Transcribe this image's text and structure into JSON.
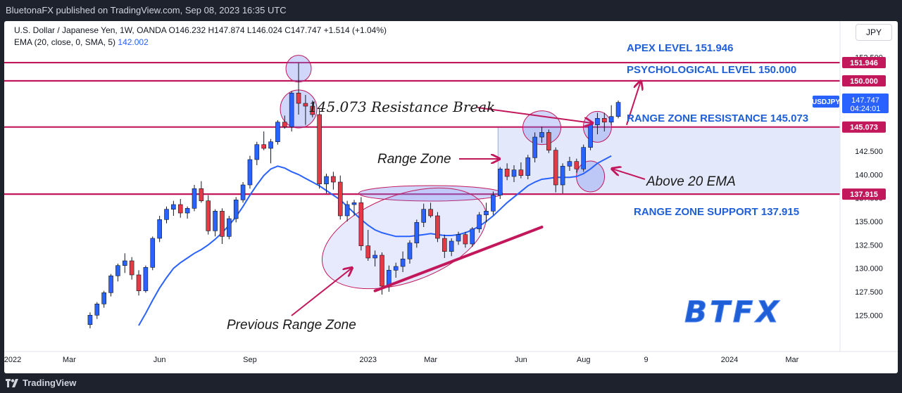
{
  "header": {
    "publisher": "BluetonaFX published on TradingView.com, Sep 08, 2023 16:35 UTC"
  },
  "legend": {
    "symbol_line": "U.S. Dollar / Japanese Yen, 1W, OANDA  O146.232  H147.874  L146.024  C147.747  +1.514 (+1.04%)",
    "ema_label": "EMA (20, close, 0, SMA, 5)",
    "ema_value": "142.002"
  },
  "currency_button": "JPY",
  "footer": {
    "brand": "TradingView"
  },
  "colors": {
    "up": "#2962ff",
    "down": "#e53946",
    "ema": "#2962ff",
    "level": "#c2185b",
    "annotation_blue": "#1e5fd8",
    "zone_fill": "#e3e9fb"
  },
  "chart_data": {
    "type": "candlestick",
    "symbol": "USDJPY",
    "interval": "1W",
    "ylim": [
      123.75,
      153.0
    ],
    "y_ticks": [
      {
        "value": 125.0,
        "label": "125.000"
      },
      {
        "value": 127.5,
        "label": "127.500"
      },
      {
        "value": 130.0,
        "label": "130.000"
      },
      {
        "value": 132.5,
        "label": "132.500"
      },
      {
        "value": 135.0,
        "label": "135.000"
      },
      {
        "value": 137.5,
        "label": "137.500"
      },
      {
        "value": 140.0,
        "label": "140.000"
      },
      {
        "value": 142.5,
        "label": "142.500"
      },
      {
        "value": 152.5,
        "label": "152.500"
      }
    ],
    "x_ticks": [
      {
        "index": 0,
        "label": "2022"
      },
      {
        "index": 9,
        "label": "Mar"
      },
      {
        "index": 22,
        "label": "Jun"
      },
      {
        "index": 35,
        "label": "Sep"
      },
      {
        "index": 52,
        "label": "2023"
      },
      {
        "index": 61,
        "label": "Mar"
      },
      {
        "index": 74,
        "label": "Jun"
      },
      {
        "index": 83,
        "label": "Aug"
      },
      {
        "index": 92,
        "label": "9"
      },
      {
        "index": 104,
        "label": "2024"
      },
      {
        "index": 113,
        "label": "Mar"
      }
    ],
    "price_tags": [
      {
        "value": 151.946,
        "label": "151.946",
        "style": "level"
      },
      {
        "value": 150.0,
        "label": "150.000",
        "style": "level"
      },
      {
        "value": 147.747,
        "label": "147.747",
        "sub": "04:24:01",
        "style": "current",
        "symbol_tag": "USDJPY"
      },
      {
        "value": 145.073,
        "label": "145.073",
        "style": "level"
      },
      {
        "value": 137.915,
        "label": "137.915",
        "style": "level"
      }
    ],
    "levels": [
      {
        "value": 151.946,
        "name": "APEX LEVEL 151.946"
      },
      {
        "value": 150.0,
        "name": "PSYCHOLOGICAL LEVEL 150.000"
      },
      {
        "value": 145.073,
        "name": "RANGE ZONE RESISTANCE 145.073"
      },
      {
        "value": 137.915,
        "name": "RANGE ZONE SUPPORT 137.915"
      }
    ],
    "candles": [
      [
        12,
        124.0,
        125.3,
        123.6,
        125.0
      ],
      [
        13,
        125.0,
        126.4,
        124.6,
        126.2
      ],
      [
        14,
        126.2,
        127.6,
        125.8,
        127.4
      ],
      [
        15,
        127.4,
        129.4,
        127.0,
        129.2
      ],
      [
        16,
        129.2,
        130.5,
        128.6,
        130.3
      ],
      [
        17,
        130.3,
        131.6,
        129.5,
        130.8
      ],
      [
        18,
        130.8,
        131.2,
        128.8,
        129.3
      ],
      [
        19,
        129.3,
        129.8,
        127.1,
        127.6
      ],
      [
        20,
        127.6,
        130.3,
        127.4,
        130.1
      ],
      [
        21,
        130.1,
        133.4,
        129.8,
        133.2
      ],
      [
        22,
        133.2,
        135.6,
        132.8,
        135.2
      ],
      [
        23,
        135.2,
        136.6,
        134.8,
        136.3
      ],
      [
        24,
        136.3,
        137.2,
        135.6,
        136.8
      ],
      [
        25,
        136.8,
        137.4,
        135.4,
        135.9
      ],
      [
        26,
        135.9,
        136.6,
        135.3,
        136.4
      ],
      [
        27,
        136.4,
        138.9,
        136.1,
        138.5
      ],
      [
        28,
        138.5,
        139.3,
        137.0,
        137.2
      ],
      [
        29,
        137.2,
        137.8,
        133.6,
        134.0
      ],
      [
        30,
        134.0,
        136.3,
        133.4,
        136.1
      ],
      [
        31,
        136.1,
        136.4,
        132.6,
        133.4
      ],
      [
        32,
        133.4,
        135.6,
        133.1,
        135.3
      ],
      [
        33,
        135.3,
        137.6,
        134.9,
        137.3
      ],
      [
        34,
        137.3,
        139.2,
        137.0,
        138.9
      ],
      [
        35,
        138.9,
        142.0,
        138.5,
        141.6
      ],
      [
        36,
        141.6,
        143.5,
        141.0,
        143.2
      ],
      [
        37,
        143.2,
        144.6,
        142.6,
        142.8
      ],
      [
        38,
        142.8,
        143.8,
        141.2,
        143.5
      ],
      [
        39,
        143.5,
        145.8,
        143.2,
        145.6
      ],
      [
        40,
        145.6,
        146.3,
        144.9,
        145.1
      ],
      [
        41,
        145.1,
        148.9,
        144.6,
        148.7
      ],
      [
        42,
        148.7,
        151.9,
        146.4,
        147.6
      ],
      [
        43,
        147.6,
        148.5,
        145.3,
        147.3
      ],
      [
        44,
        147.3,
        147.9,
        146.1,
        146.4
      ],
      [
        45,
        146.4,
        147.1,
        138.5,
        139.0
      ],
      [
        46,
        139.0,
        140.1,
        138.0,
        139.8
      ],
      [
        47,
        139.8,
        140.3,
        138.4,
        139.2
      ],
      [
        48,
        139.2,
        139.9,
        135.2,
        135.6
      ],
      [
        49,
        135.6,
        137.2,
        135.0,
        136.8
      ],
      [
        50,
        136.8,
        137.3,
        135.6,
        137.0
      ],
      [
        51,
        137.0,
        137.6,
        131.9,
        132.4
      ],
      [
        52,
        132.4,
        134.1,
        130.8,
        131.1
      ],
      [
        53,
        131.1,
        131.9,
        130.2,
        131.4
      ],
      [
        54,
        131.4,
        131.7,
        127.2,
        128.1
      ],
      [
        55,
        128.1,
        130.3,
        127.5,
        129.8
      ],
      [
        56,
        129.8,
        130.6,
        129.0,
        130.2
      ],
      [
        57,
        130.2,
        131.8,
        129.6,
        131.0
      ],
      [
        58,
        131.0,
        133.0,
        130.5,
        132.7
      ],
      [
        59,
        132.7,
        135.2,
        132.2,
        134.9
      ],
      [
        60,
        134.9,
        136.9,
        134.4,
        136.3
      ],
      [
        61,
        136.3,
        137.0,
        135.4,
        135.6
      ],
      [
        62,
        135.6,
        136.0,
        132.8,
        133.2
      ],
      [
        63,
        133.2,
        133.6,
        131.1,
        131.8
      ],
      [
        64,
        131.8,
        133.2,
        131.3,
        132.9
      ],
      [
        65,
        132.9,
        133.9,
        132.5,
        133.6
      ],
      [
        66,
        133.6,
        133.9,
        132.2,
        132.6
      ],
      [
        67,
        132.6,
        134.4,
        132.3,
        134.2
      ],
      [
        68,
        134.2,
        136.0,
        133.8,
        135.7
      ],
      [
        69,
        135.7,
        137.0,
        134.9,
        136.1
      ],
      [
        70,
        136.1,
        138.2,
        135.7,
        137.8
      ],
      [
        71,
        137.8,
        140.8,
        137.4,
        140.6
      ],
      [
        72,
        140.6,
        141.2,
        139.4,
        139.8
      ],
      [
        73,
        139.8,
        141.0,
        139.2,
        140.5
      ],
      [
        74,
        140.5,
        141.3,
        139.6,
        139.9
      ],
      [
        75,
        139.9,
        142.1,
        139.5,
        141.8
      ],
      [
        76,
        141.8,
        144.5,
        141.3,
        144.0
      ],
      [
        77,
        144.0,
        145.1,
        143.4,
        144.5
      ],
      [
        78,
        144.5,
        144.8,
        142.3,
        142.6
      ],
      [
        79,
        142.6,
        142.9,
        138.1,
        138.9
      ],
      [
        80,
        138.9,
        141.2,
        138.0,
        140.9
      ],
      [
        81,
        140.9,
        141.9,
        140.4,
        141.4
      ],
      [
        82,
        141.4,
        141.7,
        140.2,
        140.6
      ],
      [
        83,
        140.6,
        143.2,
        140.3,
        142.9
      ],
      [
        84,
        142.9,
        145.6,
        142.6,
        145.3
      ],
      [
        85,
        145.3,
        146.6,
        144.3,
        146.0
      ],
      [
        86,
        146.0,
        146.6,
        144.6,
        145.6
      ],
      [
        87,
        145.6,
        147.4,
        145.3,
        146.2
      ],
      [
        88,
        146.2,
        147.9,
        146.0,
        147.7
      ]
    ],
    "ema": [
      [
        19,
        123.9
      ],
      [
        20,
        125.2
      ],
      [
        21,
        126.6
      ],
      [
        22,
        127.9
      ],
      [
        23,
        129.0
      ],
      [
        24,
        130.0
      ],
      [
        25,
        130.6
      ],
      [
        26,
        131.1
      ],
      [
        27,
        131.6
      ],
      [
        28,
        132.0
      ],
      [
        29,
        132.5
      ],
      [
        30,
        133.1
      ],
      [
        31,
        133.8
      ],
      [
        32,
        134.6
      ],
      [
        33,
        135.5
      ],
      [
        34,
        136.6
      ],
      [
        35,
        137.8
      ],
      [
        36,
        138.9
      ],
      [
        37,
        139.9
      ],
      [
        38,
        140.6
      ],
      [
        39,
        140.9
      ],
      [
        40,
        140.7
      ],
      [
        41,
        140.3
      ],
      [
        42,
        140.0
      ],
      [
        43,
        139.6
      ],
      [
        44,
        139.2
      ],
      [
        45,
        138.8
      ],
      [
        46,
        138.3
      ],
      [
        47,
        137.8
      ],
      [
        48,
        137.3
      ],
      [
        49,
        136.6
      ],
      [
        50,
        135.9
      ],
      [
        51,
        135.2
      ],
      [
        52,
        134.6
      ],
      [
        53,
        134.1
      ],
      [
        54,
        133.8
      ],
      [
        55,
        133.6
      ],
      [
        56,
        133.4
      ],
      [
        57,
        133.4
      ],
      [
        58,
        133.4
      ],
      [
        59,
        133.5
      ],
      [
        60,
        133.6
      ],
      [
        61,
        133.7
      ],
      [
        62,
        133.6
      ],
      [
        63,
        133.5
      ],
      [
        64,
        133.5
      ],
      [
        65,
        133.6
      ],
      [
        66,
        133.8
      ],
      [
        67,
        134.1
      ],
      [
        68,
        134.5
      ],
      [
        69,
        135.0
      ],
      [
        70,
        135.6
      ],
      [
        71,
        136.3
      ],
      [
        72,
        137.0
      ],
      [
        73,
        137.6
      ],
      [
        74,
        138.2
      ],
      [
        75,
        138.8
      ],
      [
        76,
        139.2
      ],
      [
        77,
        139.5
      ],
      [
        78,
        139.6
      ],
      [
        79,
        139.7
      ],
      [
        80,
        139.7
      ],
      [
        81,
        139.7
      ],
      [
        82,
        139.8
      ],
      [
        83,
        140.1
      ],
      [
        84,
        140.6
      ],
      [
        85,
        141.2
      ],
      [
        86,
        141.6
      ],
      [
        87,
        142.0
      ]
    ],
    "annotations": {
      "apex": "APEX LEVEL 151.946",
      "psych": "PSYCHOLOGICAL LEVEL 150.000",
      "resistance": "RANGE ZONE RESISTANCE 145.073",
      "support": "RANGE ZONE SUPPORT 137.915",
      "break": "145.073 Resistance Break",
      "range_zone": "Range Zone",
      "above_ema": "Above 20 EMA",
      "previous_range": "Previous Range Zone"
    },
    "watermark": "BTFX"
  }
}
